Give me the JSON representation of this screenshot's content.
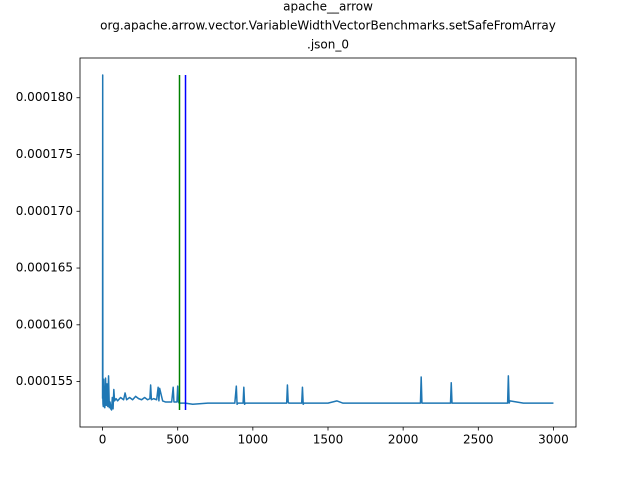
{
  "chart_data": {
    "type": "line",
    "title": [
      "apache__arrow",
      "org.apache.arrow.vector.VariableWidthVectorBenchmarks.setSafeFromArray",
      ".json_0"
    ],
    "x": [
      0,
      1,
      2,
      3,
      5,
      8,
      10,
      15,
      20,
      25,
      30,
      35,
      40,
      45,
      50,
      55,
      60,
      65,
      70,
      75,
      80,
      90,
      100,
      120,
      140,
      150,
      160,
      180,
      200,
      220,
      240,
      260,
      280,
      300,
      315,
      320,
      325,
      340,
      360,
      370,
      375,
      380,
      400,
      420,
      460,
      470,
      475,
      480,
      495,
      500,
      505,
      510,
      550,
      600,
      700,
      800,
      880,
      890,
      895,
      900,
      935,
      940,
      945,
      950,
      1100,
      1225,
      1230,
      1235,
      1240,
      1325,
      1330,
      1335,
      1340,
      1500,
      1560,
      1600,
      1800,
      2000,
      2115,
      2120,
      2125,
      2130,
      2315,
      2320,
      2325,
      2330,
      2500,
      2695,
      2700,
      2705,
      2710,
      2800,
      2900,
      3000
    ],
    "series": [
      {
        "color": "#1f77b4",
        "values": [
          0.0001535,
          0.000182,
          0.0001535,
          0.000153,
          0.0001528,
          0.0001552,
          0.000153,
          0.0001527,
          0.0001553,
          0.0001529,
          0.0001548,
          0.0001528,
          0.0001555,
          0.0001527,
          0.0001532,
          0.0001526,
          0.0001525,
          0.0001536,
          0.0001526,
          0.0001543,
          0.0001533,
          0.0001535,
          0.0001533,
          0.0001536,
          0.0001534,
          0.000154,
          0.0001534,
          0.0001536,
          0.0001534,
          0.0001537,
          0.0001535,
          0.0001534,
          0.0001536,
          0.0001534,
          0.0001535,
          0.0001547,
          0.0001534,
          0.0001535,
          0.0001534,
          0.0001545,
          0.0001533,
          0.0001544,
          0.0001533,
          0.0001532,
          0.0001532,
          0.0001545,
          0.0001532,
          0.0001532,
          0.0001532,
          0.0001546,
          0.0001532,
          0.0001531,
          0.0001531,
          0.000153,
          0.0001531,
          0.0001531,
          0.0001531,
          0.0001546,
          0.000153,
          0.0001531,
          0.0001531,
          0.0001545,
          0.000153,
          0.0001531,
          0.0001531,
          0.0001531,
          0.0001547,
          0.0001532,
          0.0001531,
          0.0001531,
          0.0001545,
          0.000153,
          0.0001531,
          0.0001531,
          0.0001533,
          0.0001531,
          0.0001531,
          0.0001531,
          0.0001531,
          0.0001554,
          0.0001531,
          0.0001531,
          0.0001531,
          0.0001549,
          0.0001531,
          0.0001531,
          0.0001531,
          0.0001531,
          0.0001555,
          0.0001531,
          0.0001533,
          0.0001531,
          0.0001531,
          0.0001531
        ]
      }
    ],
    "vlines": [
      {
        "x": 512,
        "color": "#008000"
      },
      {
        "x": 552,
        "color": "#0000ff"
      }
    ],
    "xlim": [
      -150,
      3150
    ],
    "ylim": [
      0.000151,
      0.0001835
    ],
    "xticks": [
      0,
      500,
      1000,
      1500,
      2000,
      2500,
      3000
    ],
    "yticks": [
      {
        "value": 0.000155,
        "label": "0.000155"
      },
      {
        "value": 0.00016,
        "label": "0.000160"
      },
      {
        "value": 0.000165,
        "label": "0.000165"
      },
      {
        "value": 0.00017,
        "label": "0.000170"
      },
      {
        "value": 0.000175,
        "label": "0.000175"
      },
      {
        "value": 0.00018,
        "label": "0.000180"
      }
    ],
    "grid": false
  }
}
